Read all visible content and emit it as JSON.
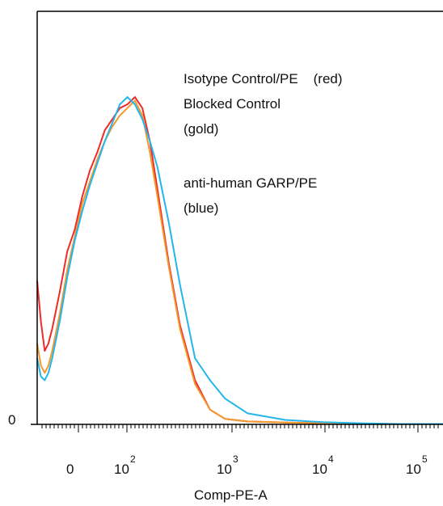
{
  "chart_data": {
    "type": "line",
    "xlabel": "Comp-PE-A",
    "y_tick_labels": [
      "0"
    ],
    "x_tick_labels": [
      {
        "base": "0",
        "exp": ""
      },
      {
        "base": "10",
        "exp": "2"
      },
      {
        "base": "10",
        "exp": "3"
      },
      {
        "base": "10",
        "exp": "4"
      },
      {
        "base": "10",
        "exp": "5"
      }
    ],
    "x_scale": "biexponential (0, 10^2, 10^3, 10^4, 10^5)",
    "x_range": [
      -0.3,
      5.1
    ],
    "y_range": [
      0,
      100
    ],
    "legend_lines": [
      "Isotype Control/PE    (red)",
      "Blocked Control",
      "(gold)",
      "",
      "anti-human GARP/PE",
      "(blue)"
    ],
    "series": [
      {
        "color": "#ee2a2a",
        "x": [
          -0.3,
          -0.25,
          -0.2,
          -0.15,
          -0.1,
          0,
          0.1,
          0.2,
          0.3,
          0.4,
          0.5,
          0.6,
          0.7,
          0.8,
          0.9,
          1,
          1.1,
          1.2,
          1.3,
          1.45,
          1.6,
          1.8,
          2,
          2.2,
          2.5,
          3,
          3.5,
          4,
          4.5,
          5.1
        ],
        "y": [
          39,
          28,
          20,
          22,
          26,
          36,
          47,
          53,
          62,
          69,
          74,
          80,
          83,
          86,
          87,
          89,
          86,
          77,
          64,
          44,
          27,
          12,
          4,
          1.5,
          0.8,
          0.5,
          0.3,
          0.2,
          0.1,
          0.1
        ]
      },
      {
        "color": "#f2992e",
        "x": [
          -0.3,
          -0.25,
          -0.2,
          -0.15,
          -0.1,
          0,
          0.1,
          0.2,
          0.3,
          0.4,
          0.5,
          0.6,
          0.7,
          0.8,
          0.9,
          1,
          1.1,
          1.2,
          1.3,
          1.45,
          1.6,
          1.8,
          2,
          2.2,
          2.5,
          3,
          3.5,
          4,
          4.5,
          5.1
        ],
        "y": [
          22,
          16,
          14,
          16,
          20,
          30,
          42,
          51,
          60,
          66,
          72,
          77,
          81,
          84,
          86,
          88,
          84,
          74,
          62,
          43,
          26,
          11,
          4,
          1.5,
          0.8,
          0.5,
          0.3,
          0.2,
          0.1,
          0.1
        ]
      },
      {
        "color": "#22b6ea",
        "x": [
          -0.3,
          -0.25,
          -0.2,
          -0.15,
          -0.1,
          0,
          0.1,
          0.2,
          0.3,
          0.4,
          0.5,
          0.6,
          0.7,
          0.8,
          0.9,
          1,
          1.1,
          1.2,
          1.3,
          1.45,
          1.6,
          1.8,
          2,
          2.2,
          2.5,
          3,
          3.5,
          4,
          4.5,
          5.1
        ],
        "y": [
          18,
          13,
          12,
          14,
          18,
          28,
          40,
          50,
          58,
          65,
          71,
          77,
          82,
          87,
          89,
          87,
          83,
          77,
          70,
          55,
          38,
          18,
          12,
          7,
          3,
          1.2,
          0.6,
          0.3,
          0.1,
          0.1
        ]
      }
    ]
  }
}
